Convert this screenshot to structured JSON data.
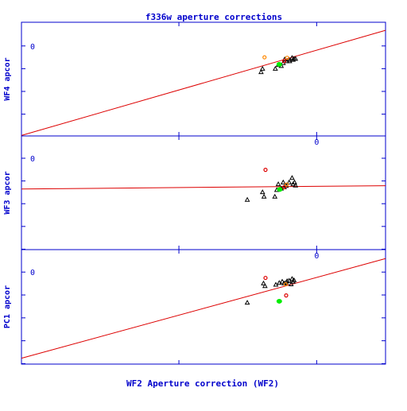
{
  "title": "f336w aperture corrections",
  "xlabel": "WF2 Aperture correction (WF2)",
  "colors": {
    "axis": "#0000cc",
    "line": "#dd0000",
    "triangle": "#000000",
    "orange": "#ff8800",
    "red": "#dd0000",
    "green": "#00ee00",
    "background": "#ffffff"
  },
  "chart_data": [
    {
      "type": "scatter",
      "panel": "WF4",
      "ylabel": "WF4 apcor",
      "xlim": [
        -0.6,
        0.14
      ],
      "ylim": [
        -0.19,
        0.05
      ],
      "xticks": [
        0
      ],
      "yticks": [
        0
      ],
      "ytick_labels": [
        "0"
      ],
      "fit_line": {
        "slope": 0.3,
        "intercept": -0.009
      },
      "series": [
        {
          "marker": "triangle",
          "color": "#000000",
          "points": [
            [
              -0.113,
              -0.055
            ],
            [
              -0.11,
              -0.048
            ],
            [
              -0.084,
              -0.048
            ],
            [
              -0.078,
              -0.04
            ],
            [
              -0.072,
              -0.042
            ],
            [
              -0.068,
              -0.036
            ],
            [
              -0.061,
              -0.032
            ],
            [
              -0.055,
              -0.032
            ],
            [
              -0.05,
              -0.025
            ],
            [
              -0.048,
              -0.029
            ],
            [
              -0.046,
              -0.027
            ],
            [
              -0.043,
              -0.027
            ],
            [
              -0.056,
              -0.029
            ],
            [
              -0.065,
              -0.028
            ]
          ]
        },
        {
          "marker": "circle",
          "color": "#ff8800",
          "points": [
            [
              -0.106,
              -0.024
            ],
            [
              -0.06,
              -0.025
            ]
          ]
        },
        {
          "marker": "circle",
          "color": "#dd0000",
          "points": [
            [
              -0.066,
              -0.032
            ]
          ]
        },
        {
          "marker": "blob",
          "color": "#00ee00",
          "points": [
            [
              -0.076,
              -0.039
            ]
          ]
        }
      ]
    },
    {
      "type": "scatter",
      "panel": "WF3",
      "ylabel": "WF3 apcor",
      "xlim": [
        -0.6,
        0.14
      ],
      "ylim": [
        -0.205,
        0.05
      ],
      "xticks": [
        0
      ],
      "xtick_labels": [
        "0"
      ],
      "yticks": [
        0
      ],
      "ytick_labels": [
        "0"
      ],
      "fit_line": {
        "slope": 0.01,
        "intercept": -0.063
      },
      "series": [
        {
          "marker": "triangle",
          "color": "#000000",
          "points": [
            [
              -0.141,
              -0.093
            ],
            [
              -0.11,
              -0.076
            ],
            [
              -0.107,
              -0.086
            ],
            [
              -0.085,
              -0.086
            ],
            [
              -0.081,
              -0.071
            ],
            [
              -0.078,
              -0.058
            ],
            [
              -0.072,
              -0.068
            ],
            [
              -0.066,
              -0.065
            ],
            [
              -0.062,
              -0.062
            ],
            [
              -0.056,
              -0.054
            ],
            [
              -0.05,
              -0.044
            ],
            [
              -0.048,
              -0.058
            ],
            [
              -0.045,
              -0.054
            ],
            [
              -0.043,
              -0.061
            ],
            [
              -0.068,
              -0.054
            ]
          ]
        },
        {
          "marker": "circle",
          "color": "#dd0000",
          "points": [
            [
              -0.104,
              -0.026
            ],
            [
              -0.066,
              -0.065
            ]
          ]
        },
        {
          "marker": "circle",
          "color": "#ff8800",
          "points": [
            [
              -0.061,
              -0.059
            ]
          ]
        },
        {
          "marker": "blob",
          "color": "#00ee00",
          "points": [
            [
              -0.075,
              -0.07
            ]
          ]
        }
      ]
    },
    {
      "type": "scatter",
      "panel": "PC1",
      "ylabel": "PC1 apcor",
      "xlim": [
        -0.6,
        0.14
      ],
      "ylim": [
        -0.205,
        0.05
      ],
      "xticks": [
        0
      ],
      "xtick_labels": [
        "0"
      ],
      "yticks": [
        0
      ],
      "ytick_labels": [
        "0"
      ],
      "fit_line": {
        "slope": 0.3,
        "intercept": -0.012
      },
      "series": [
        {
          "marker": "triangle",
          "color": "#000000",
          "points": [
            [
              -0.141,
              -0.068
            ],
            [
              -0.108,
              -0.025
            ],
            [
              -0.105,
              -0.031
            ],
            [
              -0.083,
              -0.028
            ],
            [
              -0.076,
              -0.024
            ],
            [
              -0.07,
              -0.021
            ],
            [
              -0.066,
              -0.025
            ],
            [
              -0.062,
              -0.023
            ],
            [
              -0.056,
              -0.019
            ],
            [
              -0.05,
              -0.015
            ],
            [
              -0.048,
              -0.021
            ],
            [
              -0.046,
              -0.018
            ],
            [
              -0.052,
              -0.027
            ],
            [
              -0.06,
              -0.02
            ]
          ]
        },
        {
          "marker": "circle",
          "color": "#dd0000",
          "points": [
            [
              -0.104,
              -0.013
            ],
            [
              -0.062,
              -0.052
            ]
          ]
        },
        {
          "marker": "circle",
          "color": "#ff8800",
          "points": [
            [
              -0.063,
              -0.027
            ]
          ]
        },
        {
          "marker": "blob",
          "color": "#00ee00",
          "points": [
            [
              -0.076,
              -0.065
            ]
          ]
        }
      ]
    }
  ]
}
